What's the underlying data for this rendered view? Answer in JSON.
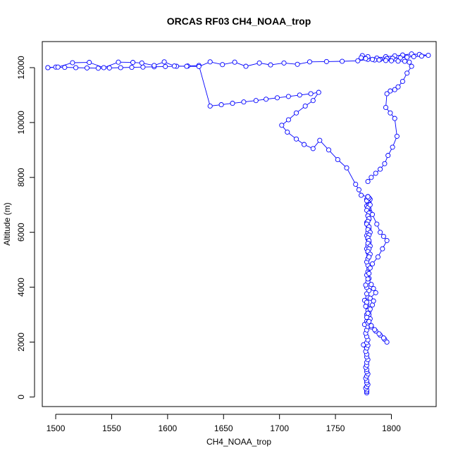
{
  "chart_data": {
    "type": "line",
    "title": "ORCAS RF03 CH4_NOAA_trop",
    "xlabel": "CH4_NOAA_trop",
    "ylabel": "Altitude (m)",
    "xlim": [
      1488,
      1840
    ],
    "ylim": [
      -350,
      12950
    ],
    "x_ticks": [
      1500,
      1550,
      1600,
      1650,
      1700,
      1750,
      1800
    ],
    "y_ticks": [
      0,
      2000,
      4000,
      6000,
      8000,
      10000,
      12000
    ],
    "grid": false,
    "legend": "none",
    "color": "#0000ff",
    "marker": "open-circle",
    "series": [
      {
        "x": [
          1778,
          1778,
          1778,
          1777,
          1778,
          1779,
          1778,
          1778,
          1777,
          1778,
          1779,
          1778,
          1778,
          1777,
          1778,
          1778,
          1779,
          1778,
          1778,
          1777,
          1775,
          1778,
          1779,
          1778,
          1779,
          1778,
          1777,
          1778,
          1779,
          1776,
          1778,
          1779,
          1778,
          1780,
          1779,
          1778,
          1776,
          1779,
          1778,
          1780,
          1778,
          1777,
          1779,
          1780,
          1778,
          1779,
          1780,
          1779,
          1778,
          1779,
          1780,
          1779,
          1778,
          1779,
          1780,
          1779,
          1778,
          1779,
          1780,
          1779,
          1778,
          1780,
          1779,
          1781,
          1779,
          1778,
          1780,
          1779,
          1781,
          1780,
          1779,
          1778,
          1779,
          1780,
          1779,
          1778,
          1780,
          1779,
          1778,
          1780,
          1779,
          1780,
          1779,
          1778,
          1780,
          1779,
          1781,
          1780,
          1779,
          1780,
          1779,
          1781,
          1780,
          1779,
          1781,
          1780
        ],
        "y": [
          150,
          200,
          260,
          320,
          380,
          450,
          520,
          600,
          680,
          760,
          840,
          920,
          1000,
          1080,
          1160,
          1260,
          1360,
          1460,
          1560,
          1660,
          1900,
          1780,
          1880,
          1980,
          2080,
          2200,
          2320,
          2440,
          2560,
          2640,
          2760,
          2880,
          3000,
          3120,
          3240,
          3360,
          3520,
          3640,
          3760,
          3880,
          3990,
          4080,
          4200,
          4320,
          4440,
          4560,
          4680,
          4800,
          4920,
          5040,
          5160,
          5280,
          5400,
          5520,
          5640,
          5760,
          5880,
          6000,
          6120,
          6240,
          6360,
          6480,
          6600,
          6720,
          6840,
          6960,
          7080,
          7150,
          7200,
          7250,
          7300,
          7200,
          7100,
          7250,
          7300,
          7150,
          7000,
          6900,
          6800,
          6700,
          6600,
          6500,
          6400,
          6300,
          6200,
          6100,
          6000,
          5900,
          5800,
          5700,
          5600,
          5500,
          5400,
          5300,
          5200,
          5100
        ]
      },
      {
        "x": [
          1780,
          1781,
          1783,
          1787,
          1790,
          1793,
          1796,
          1792,
          1788,
          1783,
          1781,
          1780,
          1779,
          1782,
          1784,
          1786,
          1781,
          1778,
          1777,
          1779,
          1780,
          1781,
          1779,
          1782,
          1786,
          1790,
          1794,
          1796,
          1793,
          1789,
          1785,
          1782,
          1780,
          1778,
          1779,
          1781,
          1783,
          1784
        ],
        "y": [
          7250,
          7000,
          6650,
          6300,
          6000,
          5850,
          5700,
          5400,
          5100,
          4850,
          4700,
          4500,
          4300,
          4100,
          3950,
          3800,
          3600,
          3450,
          3300,
          3150,
          3000,
          2850,
          2700,
          2550,
          2400,
          2250,
          2100,
          2000,
          2150,
          2300,
          2450,
          2600,
          2750,
          2900,
          3050,
          3200,
          3350,
          3500
        ]
      },
      {
        "x": [
          1779,
          1773,
          1771,
          1768,
          1760,
          1752,
          1744,
          1736,
          1730,
          1722,
          1715,
          1707,
          1702,
          1708,
          1715,
          1723,
          1730,
          1735,
          1728,
          1718,
          1708,
          1698,
          1688,
          1679,
          1668,
          1658,
          1648,
          1638,
          1628,
          1618,
          1608,
          1598,
          1588,
          1578,
          1568,
          1558,
          1548,
          1538,
          1528,
          1518,
          1508,
          1500,
          1493
        ],
        "y": [
          7300,
          7350,
          7550,
          7750,
          8350,
          8650,
          9000,
          9350,
          9050,
          9200,
          9400,
          9650,
          9900,
          10100,
          10350,
          10600,
          10800,
          11100,
          11050,
          11000,
          10950,
          10900,
          10850,
          10800,
          10750,
          10700,
          10650,
          10600,
          12080,
          12060,
          12050,
          12040,
          12030,
          12020,
          12010,
          12000,
          11990,
          11980,
          11990,
          12000,
          12010,
          12020,
          12000
        ]
      },
      {
        "x": [
          1493,
          1502,
          1515,
          1530,
          1543,
          1556,
          1569,
          1577,
          1588,
          1597,
          1606,
          1617,
          1628,
          1638,
          1649,
          1660,
          1670,
          1682,
          1692,
          1704,
          1716,
          1727,
          1742,
          1756,
          1770,
          1779,
          1787,
          1795,
          1803,
          1810,
          1818,
          1825,
          1833,
          1827,
          1820,
          1814,
          1808,
          1801,
          1796,
          1790,
          1785,
          1779,
          1774,
          1773,
          1777,
          1783,
          1789,
          1795,
          1800,
          1806,
          1812,
          1816,
          1818,
          1814,
          1810,
          1806,
          1803,
          1799,
          1796,
          1795,
          1799,
          1803,
          1805,
          1801,
          1797,
          1794,
          1790,
          1786,
          1782,
          1779
        ],
        "y": [
          12000,
          12020,
          12180,
          12190,
          12000,
          12200,
          12190,
          12170,
          12080,
          12210,
          12060,
          12050,
          12040,
          12210,
          12110,
          12200,
          12050,
          12170,
          12100,
          12170,
          12120,
          12210,
          12220,
          12230,
          12250,
          12300,
          12350,
          12400,
          12430,
          12460,
          12500,
          12480,
          12450,
          12420,
          12400,
          12380,
          12360,
          12340,
          12330,
          12300,
          12280,
          12400,
          12440,
          12360,
          12330,
          12300,
          12280,
          12260,
          12250,
          12240,
          12230,
          12200,
          12050,
          11800,
          11500,
          11300,
          11200,
          11150,
          11050,
          10550,
          10350,
          10150,
          9500,
          9100,
          8800,
          8500,
          8300,
          8150,
          8000,
          7850
        ]
      }
    ]
  }
}
